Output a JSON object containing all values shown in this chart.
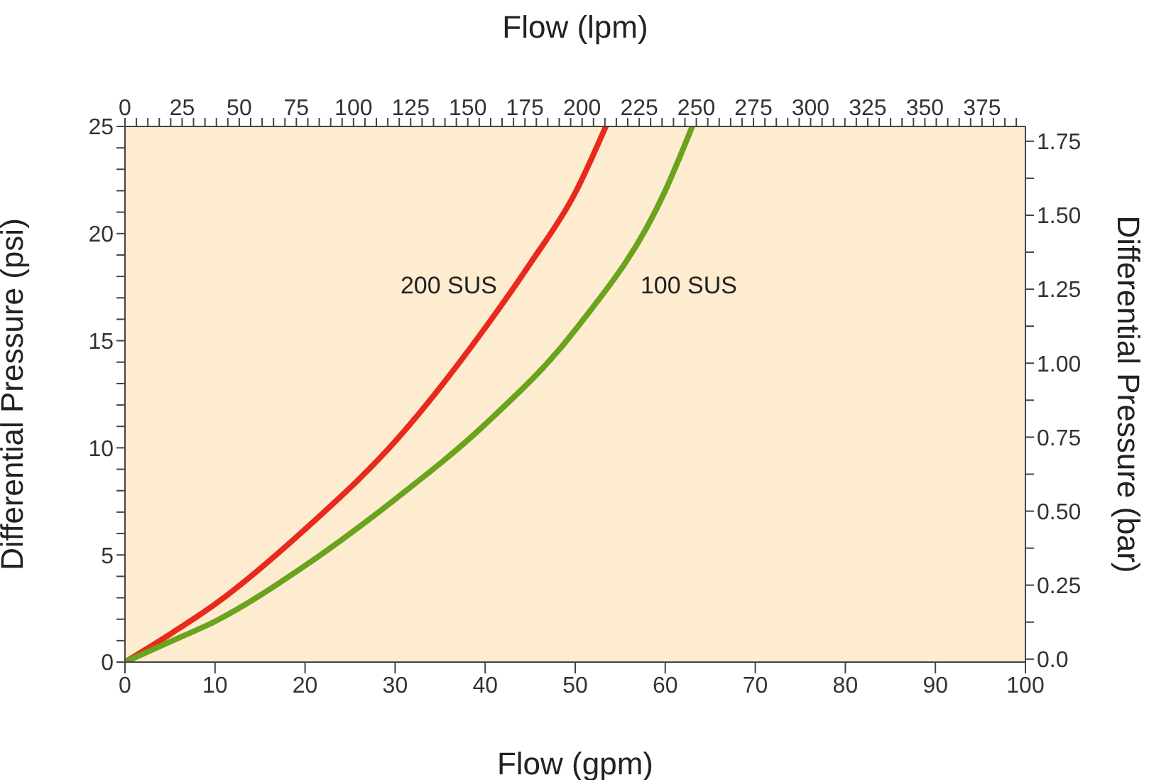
{
  "chart_data": {
    "type": "line",
    "xlabel": "Flow (gpm)",
    "x2label": "Flow (lpm)",
    "ylabel": "Differential Pressure (psi)",
    "y2label": "Differential Pressure (bar)",
    "xlim": [
      0,
      100
    ],
    "xticks": [
      0,
      10,
      20,
      30,
      40,
      50,
      60,
      70,
      80,
      90,
      100
    ],
    "x2lim": [
      0,
      394
    ],
    "x2ticks": [
      0,
      {
        "value": 5,
        "label": null
      },
      {
        "value": 10,
        "label": null
      },
      {
        "value": 15,
        "label": null
      },
      {
        "value": 20,
        "label": null
      },
      25,
      {
        "value": 30,
        "label": null
      },
      {
        "value": 35,
        "label": null
      },
      {
        "value": 40,
        "label": null
      },
      {
        "value": 45,
        "label": null
      },
      50,
      {
        "value": 55,
        "label": null
      },
      {
        "value": 60,
        "label": null
      },
      {
        "value": 65,
        "label": null
      },
      {
        "value": 70,
        "label": null
      },
      75,
      {
        "value": 80,
        "label": null
      },
      {
        "value": 85,
        "label": null
      },
      {
        "value": 90,
        "label": null
      },
      {
        "value": 95,
        "label": null
      },
      100,
      {
        "value": 105,
        "label": null
      },
      {
        "value": 110,
        "label": null
      },
      {
        "value": 115,
        "label": null
      },
      {
        "value": 120,
        "label": null
      },
      125,
      {
        "value": 130,
        "label": null
      },
      {
        "value": 135,
        "label": null
      },
      {
        "value": 140,
        "label": null
      },
      {
        "value": 145,
        "label": null
      },
      150,
      {
        "value": 155,
        "label": null
      },
      {
        "value": 160,
        "label": null
      },
      {
        "value": 165,
        "label": null
      },
      {
        "value": 170,
        "label": null
      },
      175,
      {
        "value": 180,
        "label": null
      },
      {
        "value": 185,
        "label": null
      },
      {
        "value": 190,
        "label": null
      },
      {
        "value": 195,
        "label": null
      },
      200,
      {
        "value": 205,
        "label": null
      },
      {
        "value": 210,
        "label": null
      },
      {
        "value": 215,
        "label": null
      },
      {
        "value": 220,
        "label": null
      },
      225,
      {
        "value": 230,
        "label": null
      },
      {
        "value": 235,
        "label": null
      },
      {
        "value": 240,
        "label": null
      },
      {
        "value": 245,
        "label": null
      },
      250,
      {
        "value": 255,
        "label": null
      },
      {
        "value": 260,
        "label": null
      },
      {
        "value": 265,
        "label": null
      },
      {
        "value": 270,
        "label": null
      },
      275,
      {
        "value": 280,
        "label": null
      },
      {
        "value": 285,
        "label": null
      },
      {
        "value": 290,
        "label": null
      },
      {
        "value": 295,
        "label": null
      },
      300,
      {
        "value": 305,
        "label": null
      },
      {
        "value": 310,
        "label": null
      },
      {
        "value": 315,
        "label": null
      },
      {
        "value": 320,
        "label": null
      },
      325,
      {
        "value": 330,
        "label": null
      },
      {
        "value": 335,
        "label": null
      },
      {
        "value": 340,
        "label": null
      },
      {
        "value": 345,
        "label": null
      },
      350,
      {
        "value": 355,
        "label": null
      },
      {
        "value": 360,
        "label": null
      },
      {
        "value": 365,
        "label": null
      },
      {
        "value": 370,
        "label": null
      },
      375,
      {
        "value": 380,
        "label": null
      },
      {
        "value": 385,
        "label": null
      },
      {
        "value": 390,
        "label": null
      }
    ],
    "ylim": [
      0,
      25
    ],
    "yticks": [
      0,
      {
        "value": 1,
        "label": null
      },
      {
        "value": 2,
        "label": null
      },
      {
        "value": 3,
        "label": null
      },
      {
        "value": 4,
        "label": null
      },
      5,
      {
        "value": 6,
        "label": null
      },
      {
        "value": 7,
        "label": null
      },
      {
        "value": 8,
        "label": null
      },
      {
        "value": 9,
        "label": null
      },
      10,
      {
        "value": 11,
        "label": null
      },
      {
        "value": 12,
        "label": null
      },
      {
        "value": 13,
        "label": null
      },
      {
        "value": 14,
        "label": null
      },
      15,
      {
        "value": 16,
        "label": null
      },
      {
        "value": 17,
        "label": null
      },
      {
        "value": 18,
        "label": null
      },
      {
        "value": 19,
        "label": null
      },
      20,
      {
        "value": 21,
        "label": null
      },
      {
        "value": 22,
        "label": null
      },
      {
        "value": 23,
        "label": null
      },
      {
        "value": 24,
        "label": null
      },
      25
    ],
    "y2lim": [
      -0.01,
      1.8
    ],
    "y2ticks": [
      {
        "value": 0,
        "label": "0.0"
      },
      {
        "value": 0.125,
        "label": null
      },
      {
        "value": 0.25,
        "label": "0.25"
      },
      {
        "value": 0.375,
        "label": null
      },
      {
        "value": 0.5,
        "label": "0.50"
      },
      {
        "value": 0.625,
        "label": null
      },
      {
        "value": 0.75,
        "label": "0.75"
      },
      {
        "value": 0.875,
        "label": null
      },
      {
        "value": 1,
        "label": "1.00"
      },
      {
        "value": 1.125,
        "label": null
      },
      {
        "value": 1.25,
        "label": "1.25"
      },
      {
        "value": 1.375,
        "label": null
      },
      {
        "value": 1.5,
        "label": "1.50"
      },
      {
        "value": 1.625,
        "label": null
      },
      {
        "value": 1.75,
        "label": "1.75"
      }
    ],
    "series": [
      {
        "color": "#e8291c",
        "x": [
          0,
          5,
          10,
          20,
          30,
          40,
          45,
          50,
          53.4
        ],
        "values": [
          0,
          1.3,
          2.7,
          6.2,
          10.3,
          15.6,
          18.6,
          21.9,
          25
        ]
      },
      {
        "color": "#6aa31c",
        "x": [
          0,
          5,
          10,
          20,
          30,
          40,
          50,
          60,
          63.0
        ],
        "values": [
          0,
          0.95,
          1.9,
          4.5,
          7.6,
          11.1,
          15.5,
          22.0,
          25
        ]
      }
    ],
    "annotations": [
      "200 SUS",
      "100 SUS"
    ]
  }
}
